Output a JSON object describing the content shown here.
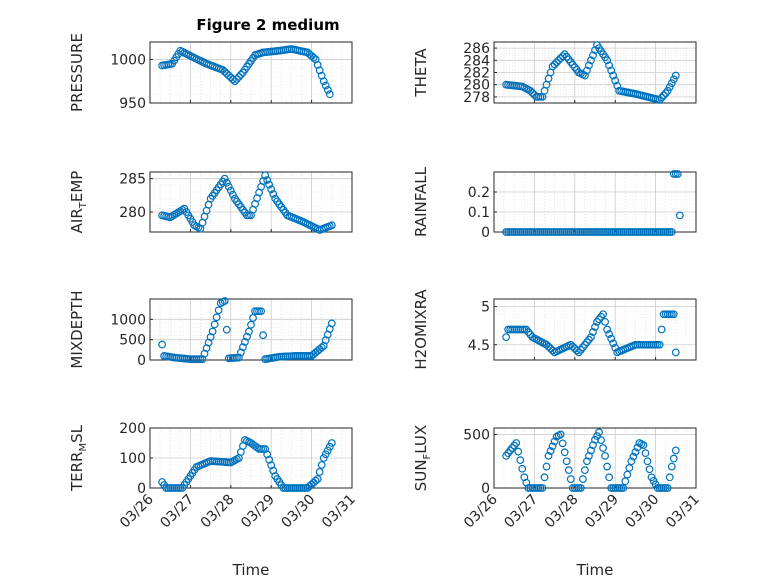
{
  "figure": {
    "title": "Figure 2 medium",
    "marker_color": "#0072BD",
    "x_ticks": [
      "03/26",
      "03/27",
      "03/28",
      "03/29",
      "03/30",
      "03/31"
    ],
    "x_label": "Time"
  },
  "chart_data": [
    {
      "type": "scatter",
      "ylabel_main": "PRESSURE",
      "ylabel_sub": "",
      "xlim": [
        0,
        5
      ],
      "ylim": [
        950,
        1020
      ],
      "yticks": [
        950,
        1000
      ],
      "grid": true,
      "knots": [
        [
          0.3,
          993
        ],
        [
          0.55,
          995
        ],
        [
          0.75,
          1010
        ],
        [
          1.0,
          1004
        ],
        [
          1.4,
          995
        ],
        [
          1.8,
          988
        ],
        [
          2.1,
          975
        ],
        [
          2.3,
          985
        ],
        [
          2.6,
          1005
        ],
        [
          2.8,
          1008
        ],
        [
          3.2,
          1010
        ],
        [
          3.5,
          1012
        ],
        [
          3.9,
          1008
        ],
        [
          4.1,
          1000
        ],
        [
          4.3,
          975
        ],
        [
          4.45,
          960
        ]
      ]
    },
    {
      "type": "scatter",
      "ylabel_main": "THETA",
      "ylabel_sub": "",
      "xlim": [
        0,
        5
      ],
      "ylim": [
        277,
        287
      ],
      "yticks": [
        278,
        280,
        282,
        284,
        286
      ],
      "grid": true,
      "knots": [
        [
          0.3,
          280
        ],
        [
          0.7,
          279.7
        ],
        [
          0.9,
          279
        ],
        [
          1.05,
          278
        ],
        [
          1.2,
          278
        ],
        [
          1.45,
          283
        ],
        [
          1.75,
          285
        ],
        [
          2.1,
          282
        ],
        [
          2.25,
          281.5
        ],
        [
          2.55,
          286.5
        ],
        [
          2.8,
          284
        ],
        [
          3.1,
          279
        ],
        [
          3.5,
          278.5
        ],
        [
          3.8,
          278
        ],
        [
          4.1,
          277.5
        ],
        [
          4.3,
          279
        ],
        [
          4.5,
          281.5
        ]
      ]
    },
    {
      "type": "scatter",
      "ylabel_main": "AIR",
      "ylabel_sub": "T",
      "ylabel_tail": "EMP",
      "xlim": [
        0,
        5
      ],
      "ylim": [
        277,
        286
      ],
      "yticks": [
        280,
        285
      ],
      "grid": true,
      "knots": [
        [
          0.3,
          279.5
        ],
        [
          0.5,
          279.2
        ],
        [
          0.85,
          280.5
        ],
        [
          1.1,
          278
        ],
        [
          1.25,
          277.5
        ],
        [
          1.5,
          282
        ],
        [
          1.85,
          285
        ],
        [
          2.1,
          282
        ],
        [
          2.4,
          279.5
        ],
        [
          2.5,
          279.5
        ],
        [
          2.85,
          285.5
        ],
        [
          3.1,
          282
        ],
        [
          3.4,
          279.5
        ],
        [
          3.8,
          278.5
        ],
        [
          4.2,
          277.3
        ],
        [
          4.5,
          278
        ]
      ]
    },
    {
      "type": "scatter",
      "ylabel_main": "RAINFALL",
      "ylabel_sub": "",
      "xlim": [
        0,
        5
      ],
      "ylim": [
        0,
        0.3
      ],
      "yticks": [
        0,
        0.1,
        0.2
      ],
      "grid": true,
      "knots": [
        [
          0.3,
          0
        ],
        [
          4.4,
          0
        ],
        [
          4.41,
          0.29
        ],
        [
          4.55,
          0.29
        ],
        [
          4.62,
          0
        ]
      ]
    },
    {
      "type": "scatter",
      "ylabel_main": "MIXDEPTH",
      "ylabel_sub": "",
      "xlim": [
        0,
        5
      ],
      "ylim": [
        0,
        1500
      ],
      "yticks": [
        0,
        500,
        1000
      ],
      "grid": true,
      "knots": [
        [
          0.3,
          380
        ],
        [
          0.35,
          100
        ],
        [
          0.6,
          60
        ],
        [
          1.0,
          20
        ],
        [
          1.3,
          20
        ],
        [
          1.55,
          700
        ],
        [
          1.75,
          1400
        ],
        [
          1.85,
          1450
        ],
        [
          1.95,
          40
        ],
        [
          2.2,
          60
        ],
        [
          2.45,
          700
        ],
        [
          2.6,
          1200
        ],
        [
          2.75,
          1200
        ],
        [
          2.85,
          20
        ],
        [
          3.2,
          80
        ],
        [
          3.6,
          100
        ],
        [
          4.0,
          100
        ],
        [
          4.3,
          350
        ],
        [
          4.5,
          900
        ]
      ]
    },
    {
      "type": "scatter",
      "ylabel_main": "H2OMIXRA",
      "ylabel_sub": "",
      "xlim": [
        0,
        5
      ],
      "ylim": [
        4.3,
        5.1
      ],
      "yticks": [
        4.5,
        5
      ],
      "grid": true,
      "knots": [
        [
          0.3,
          4.6
        ],
        [
          0.35,
          4.7
        ],
        [
          0.8,
          4.7
        ],
        [
          0.95,
          4.6
        ],
        [
          1.3,
          4.5
        ],
        [
          1.5,
          4.4
        ],
        [
          1.9,
          4.5
        ],
        [
          2.1,
          4.4
        ],
        [
          2.4,
          4.6
        ],
        [
          2.55,
          4.8
        ],
        [
          2.7,
          4.9
        ],
        [
          2.8,
          4.7
        ],
        [
          3.05,
          4.4
        ],
        [
          3.5,
          4.5
        ],
        [
          3.8,
          4.5
        ],
        [
          4.1,
          4.5
        ],
        [
          4.15,
          4.7
        ],
        [
          4.2,
          4.9
        ],
        [
          4.45,
          4.9
        ],
        [
          4.5,
          4.4
        ]
      ]
    },
    {
      "type": "scatter",
      "ylabel_main": "TERR",
      "ylabel_sub": "M",
      "ylabel_tail": "SL",
      "xlim": [
        0,
        5
      ],
      "ylim": [
        0,
        200
      ],
      "yticks": [
        0,
        100,
        200
      ],
      "grid": true,
      "knots": [
        [
          0.3,
          20
        ],
        [
          0.4,
          0
        ],
        [
          0.8,
          0
        ],
        [
          1.15,
          70
        ],
        [
          1.5,
          90
        ],
        [
          2.0,
          85
        ],
        [
          2.2,
          100
        ],
        [
          2.35,
          160
        ],
        [
          2.5,
          150
        ],
        [
          2.7,
          130
        ],
        [
          2.85,
          130
        ],
        [
          3.1,
          40
        ],
        [
          3.3,
          0
        ],
        [
          3.9,
          0
        ],
        [
          4.15,
          30
        ],
        [
          4.3,
          100
        ],
        [
          4.5,
          150
        ]
      ]
    },
    {
      "type": "scatter",
      "ylabel_main": "SUN",
      "ylabel_sub": "F",
      "ylabel_tail": "LUX",
      "xlim": [
        0,
        5
      ],
      "ylim": [
        0,
        560
      ],
      "yticks": [
        0,
        500
      ],
      "grid": true,
      "knots": [
        [
          0.3,
          300
        ],
        [
          0.4,
          350
        ],
        [
          0.55,
          420
        ],
        [
          0.75,
          100
        ],
        [
          0.85,
          0
        ],
        [
          1.2,
          0
        ],
        [
          1.35,
          300
        ],
        [
          1.55,
          480
        ],
        [
          1.65,
          500
        ],
        [
          1.8,
          250
        ],
        [
          1.95,
          0
        ],
        [
          2.15,
          0
        ],
        [
          2.3,
          250
        ],
        [
          2.5,
          450
        ],
        [
          2.6,
          520
        ],
        [
          2.75,
          300
        ],
        [
          2.9,
          0
        ],
        [
          3.2,
          0
        ],
        [
          3.4,
          250
        ],
        [
          3.6,
          420
        ],
        [
          3.7,
          400
        ],
        [
          3.9,
          100
        ],
        [
          4.05,
          0
        ],
        [
          4.3,
          0
        ],
        [
          4.4,
          200
        ],
        [
          4.5,
          350
        ]
      ]
    }
  ]
}
